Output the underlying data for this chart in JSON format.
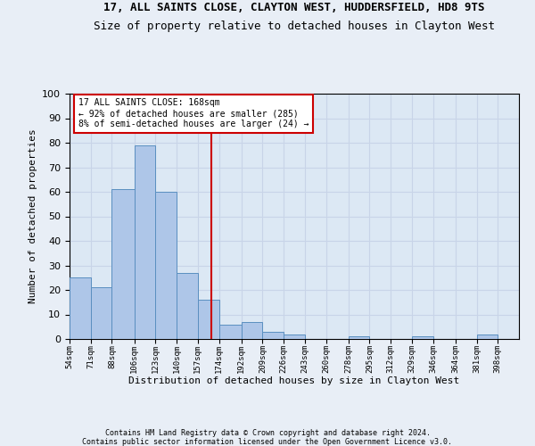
{
  "title1": "17, ALL SAINTS CLOSE, CLAYTON WEST, HUDDERSFIELD, HD8 9TS",
  "title2": "Size of property relative to detached houses in Clayton West",
  "xlabel": "Distribution of detached houses by size in Clayton West",
  "ylabel": "Number of detached properties",
  "footer1": "Contains HM Land Registry data © Crown copyright and database right 2024.",
  "footer2": "Contains public sector information licensed under the Open Government Licence v3.0.",
  "bin_labels": [
    "54sqm",
    "71sqm",
    "88sqm",
    "106sqm",
    "123sqm",
    "140sqm",
    "157sqm",
    "174sqm",
    "192sqm",
    "209sqm",
    "226sqm",
    "243sqm",
    "260sqm",
    "278sqm",
    "295sqm",
    "312sqm",
    "329sqm",
    "346sqm",
    "364sqm",
    "381sqm",
    "398sqm"
  ],
  "bar_heights": [
    25,
    21,
    61,
    79,
    60,
    27,
    16,
    6,
    7,
    3,
    2,
    0,
    0,
    1,
    0,
    0,
    1,
    0,
    0,
    2,
    0
  ],
  "bar_color": "#aec6e8",
  "bar_edge_color": "#5a8fc0",
  "property_line_x": 168,
  "property_line_label": "17 ALL SAINTS CLOSE: 168sqm",
  "annotation_line1": "← 92% of detached houses are smaller (285)",
  "annotation_line2": "8% of semi-detached houses are larger (24) →",
  "annotation_box_color": "#ffffff",
  "annotation_box_edge": "#cc0000",
  "vline_color": "#cc0000",
  "ylim": [
    0,
    100
  ],
  "yticks": [
    0,
    10,
    20,
    30,
    40,
    50,
    60,
    70,
    80,
    90,
    100
  ],
  "bin_edges": [
    54,
    71,
    88,
    106,
    123,
    140,
    157,
    174,
    192,
    209,
    226,
    243,
    260,
    278,
    295,
    312,
    329,
    346,
    364,
    381,
    398,
    415
  ],
  "grid_color": "#c8d4e8",
  "background_color": "#dce8f4",
  "fig_background": "#e8eef6",
  "title1_fontsize": 9,
  "title2_fontsize": 9,
  "ylabel_fontsize": 8,
  "xlabel_fontsize": 8
}
